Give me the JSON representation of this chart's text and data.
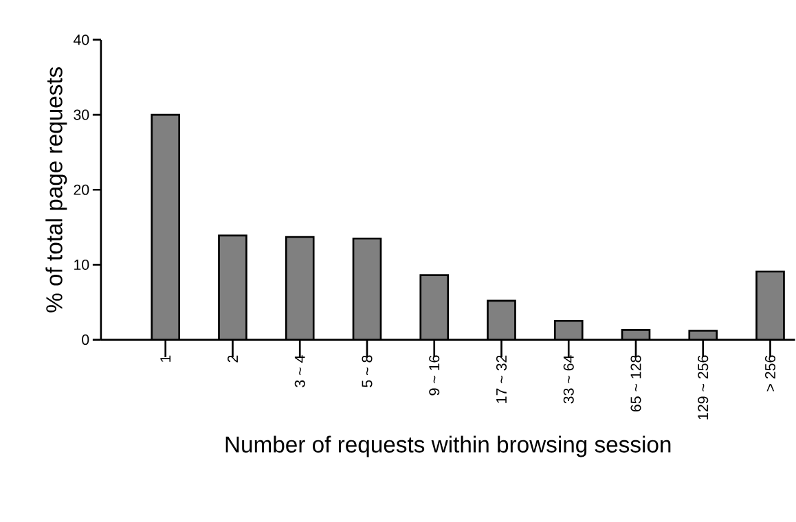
{
  "chart_data": {
    "type": "bar",
    "xlabel": "Number of requests within browsing session",
    "ylabel": "% of total page requests",
    "categories": [
      "1",
      "2",
      "3 ~ 4",
      "5 ~ 8",
      "9 ~ 16",
      "17 ~ 32",
      "33 ~ 64",
      "65 ~ 128",
      "129 ~ 256",
      "> 256"
    ],
    "values": [
      30.0,
      13.9,
      13.7,
      13.5,
      8.6,
      5.2,
      2.5,
      1.3,
      1.2,
      9.1
    ],
    "color": "#808080",
    "ylim": [
      0,
      40
    ],
    "yticks": [
      0,
      10,
      20,
      30,
      40
    ],
    "grid": false
  }
}
